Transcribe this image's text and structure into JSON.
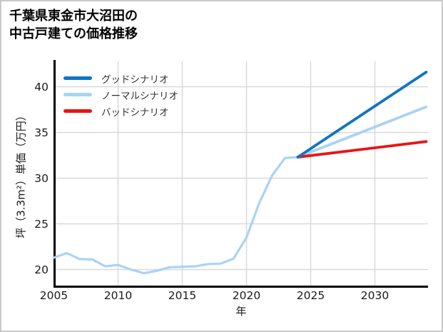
{
  "window": {
    "background": "#ffffff",
    "border_color": "#c9c9c9"
  },
  "title": {
    "line1": "千葉県東金市大沼田の",
    "line2": "中古戸建ての価格推移"
  },
  "legend": [
    {
      "label": "グッドシナリオ",
      "color": "#1274c5"
    },
    {
      "label": "ノーマルシナリオ",
      "color": "#a9d3f5"
    },
    {
      "label": "バッドシナリオ",
      "color": "#e81515"
    }
  ],
  "axes": {
    "x_label": "年",
    "y_label": "坪（3.3m²）単価（万円）",
    "x_ticks": [
      2005,
      2010,
      2015,
      2020,
      2025,
      2030
    ],
    "y_ticks": [
      20,
      25,
      30,
      35,
      40
    ],
    "grid_color": "#d9d9d9",
    "spine_color": "#000000"
  },
  "chart_data": {
    "type": "line",
    "title": "千葉県東金市大沼田の中古戸建ての価格推移",
    "xlabel": "年",
    "ylabel": "坪（3.3m²）単価（万円）",
    "xlim": [
      2005,
      2034.2
    ],
    "ylim": [
      18.1,
      42.7
    ],
    "grid": true,
    "legend_position": "upper-left",
    "series": [
      {
        "name": "historical",
        "color": "#a9d3f5",
        "width": 3.2,
        "x": [
          2005,
          2006,
          2007,
          2008,
          2009,
          2010,
          2011,
          2012,
          2013,
          2014,
          2015,
          2016,
          2017,
          2018,
          2019,
          2020,
          2021,
          2022,
          2023,
          2024
        ],
        "y": [
          21.3,
          21.8,
          21.15,
          21.1,
          20.35,
          20.5,
          20.0,
          19.6,
          19.85,
          20.25,
          20.3,
          20.35,
          20.6,
          20.65,
          21.2,
          23.5,
          27.3,
          30.3,
          32.2,
          32.3
        ]
      },
      {
        "name": "ノーマルシナリオ",
        "color": "#a9d3f5",
        "width": 3.8,
        "x": [
          2024,
          2034
        ],
        "y": [
          32.3,
          37.8
        ]
      },
      {
        "name": "バッドシナリオ",
        "color": "#e81515",
        "width": 3.8,
        "x": [
          2024,
          2034
        ],
        "y": [
          32.3,
          34.0
        ]
      },
      {
        "name": "グッドシナリオ",
        "color": "#1274c5",
        "width": 3.8,
        "x": [
          2024,
          2034
        ],
        "y": [
          32.3,
          41.6
        ]
      }
    ]
  }
}
